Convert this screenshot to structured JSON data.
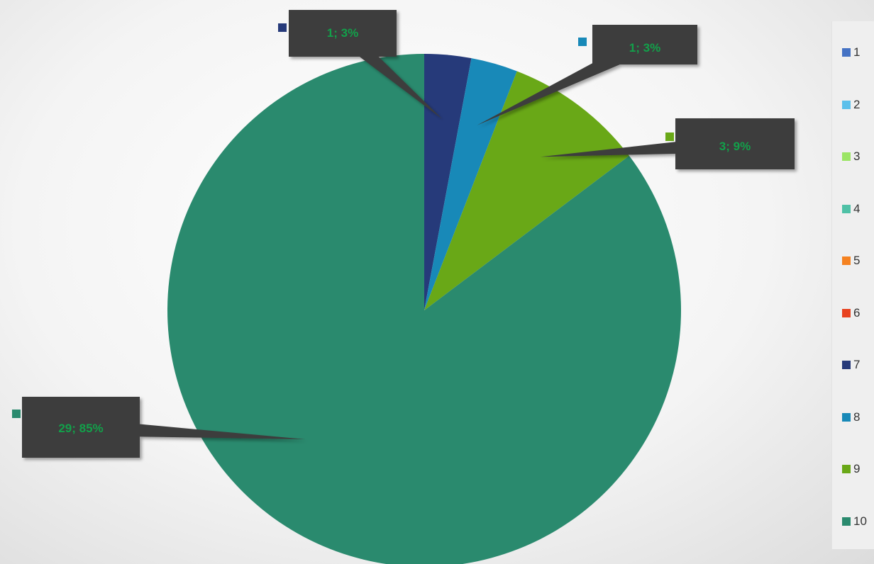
{
  "chart_data": {
    "type": "pie",
    "categories": [
      "1",
      "2",
      "3",
      "4",
      "5",
      "6",
      "7",
      "8",
      "9",
      "10"
    ],
    "values": [
      0,
      0,
      0,
      0,
      0,
      0,
      1,
      1,
      3,
      29
    ],
    "colors": [
      "#4472c4",
      "#5bc0eb",
      "#9be564",
      "#4fc1a6",
      "#f58220",
      "#e8411e",
      "#263a7a",
      "#1889b8",
      "#69a817",
      "#2a8a6e"
    ],
    "data_labels": [
      "",
      "",
      "",
      "",
      "",
      "",
      "1; 3%",
      "1; 3%",
      "3; 9%",
      "29; 85%"
    ],
    "label_color": "#12a04a",
    "label_box_color": "#3d3d3d",
    "title": "",
    "legend": "right"
  }
}
